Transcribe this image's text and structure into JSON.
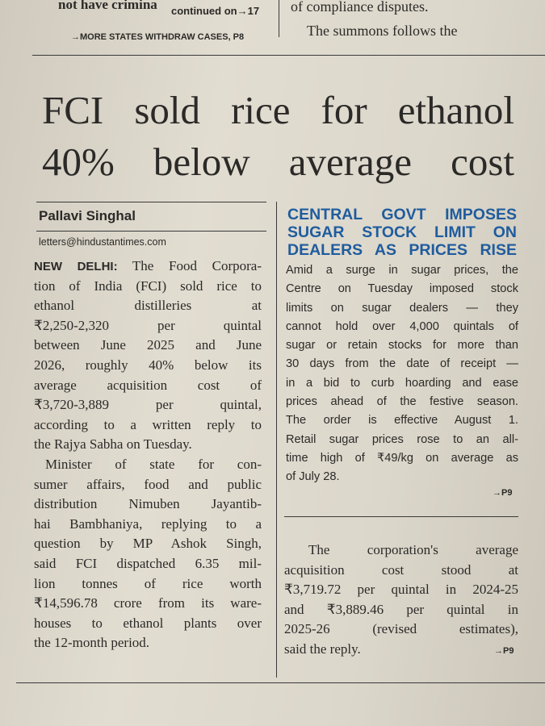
{
  "top": {
    "left_fragment": "not have crimina",
    "continued": "continued on→17",
    "more": "→MORE STATES WITHDRAW CASES, P8",
    "right_line1": "of compliance disputes.",
    "right_line2": "The summons follows the"
  },
  "headline": {
    "lines": [
      "FCI sold rice for ethanol",
      "40% below average cost"
    ]
  },
  "byline": {
    "author": "Pallavi Singhal",
    "email": "letters@hindustantimes.com"
  },
  "article": {
    "dateline": "NEW DELHI:",
    "paragraphs": [
      {
        "lines": [
          "The Food Corpora-",
          "tion of India (FCI) sold rice to",
          "ethanol distilleries at",
          "₹2,250-2,320 per quintal",
          "between June 2025 and June",
          "2026, roughly 40% below its",
          "average acquisition cost of",
          "₹3,720-3,889 per quintal,",
          "according to a written reply to",
          "the Rajya Sabha on Tuesday."
        ]
      },
      {
        "lines": [
          "Minister of state for con-",
          "sumer affairs, food and public",
          "distribution Nimuben Jayantib-",
          "hai Bambhaniya, replying to a",
          "question by MP Ashok Singh,",
          "said FCI dispatched 6.35 mil-",
          "lion tonnes of rice worth",
          "₹14,596.78 crore from its ware-",
          "houses to ethanol plants over",
          "the 12-month period."
        ]
      }
    ],
    "continuation": {
      "lines": [
        "The corporation's average",
        "acquisition cost stood at",
        "₹3,719.72 per quintal in 2024-25",
        "and ₹3,889.46 per quintal in",
        "2025-26 (revised estimates),",
        "said the reply."
      ],
      "jump": "→P9"
    }
  },
  "sidebar": {
    "heading": [
      "CENTRAL GOVT IMPOSES",
      "SUGAR STOCK LIMIT ON",
      "DEALERS AS PRICES RISE"
    ],
    "lines": [
      "Amid a surge in sugar prices, the",
      "Centre on Tuesday imposed stock",
      "limits on sugar dealers — they",
      "cannot hold over 4,000 quintals of",
      "sugar or retain stocks for more than",
      "30 days from the date of receipt —",
      "in a bid to curb hoarding and ease",
      "prices ahead of the festive season.",
      "The order is effective August 1.",
      "Retail sugar prices rose to an all-",
      "time high of ₹49/kg on average as",
      "of July 28."
    ],
    "jump": "→P9"
  }
}
